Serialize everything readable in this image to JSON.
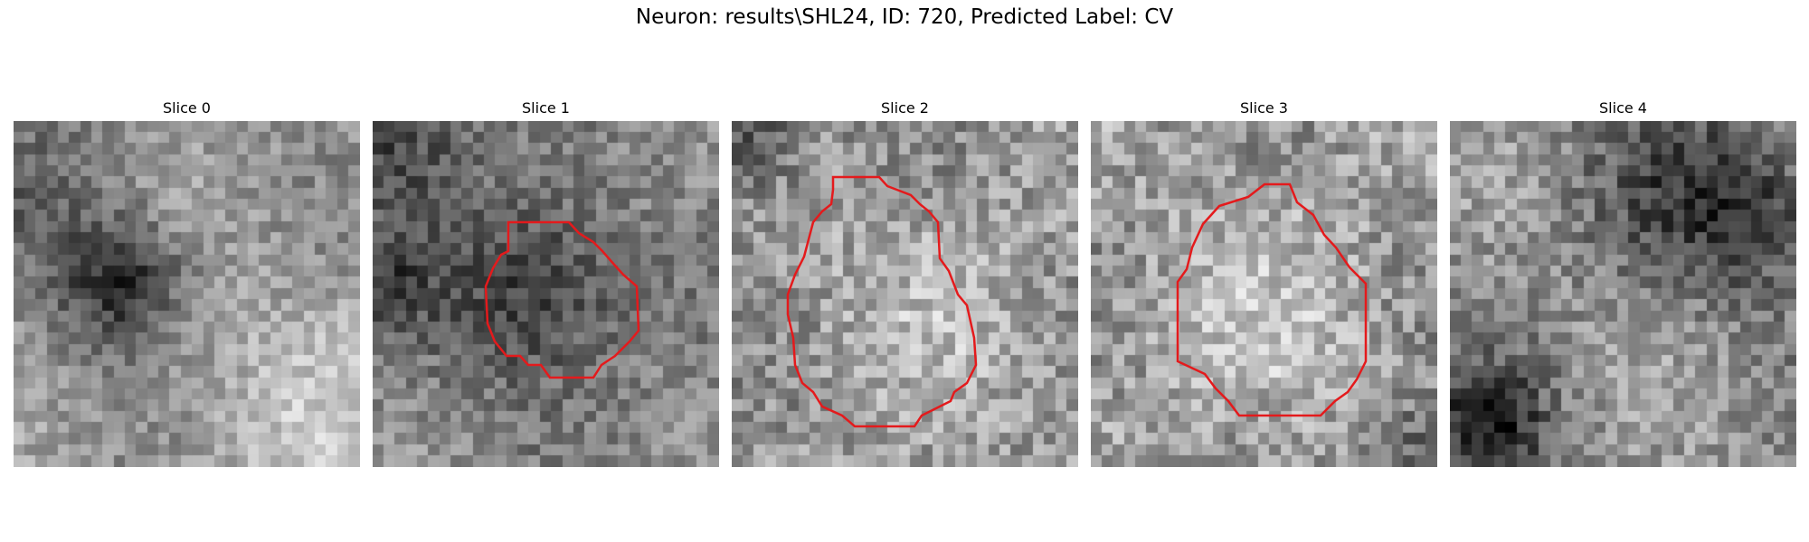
{
  "figure": {
    "title": "Neuron: results\\SHL24, ID: 720, Predicted Label: CV"
  },
  "slices": [
    {
      "title": "Slice 0",
      "has_contour": false
    },
    {
      "title": "Slice 1",
      "has_contour": true
    },
    {
      "title": "Slice 2",
      "has_contour": true
    },
    {
      "title": "Slice 3",
      "has_contour": true
    },
    {
      "title": "Slice 4",
      "has_contour": false
    }
  ],
  "colors": {
    "contour": "#e41a1c",
    "colormap": "grayscale"
  }
}
